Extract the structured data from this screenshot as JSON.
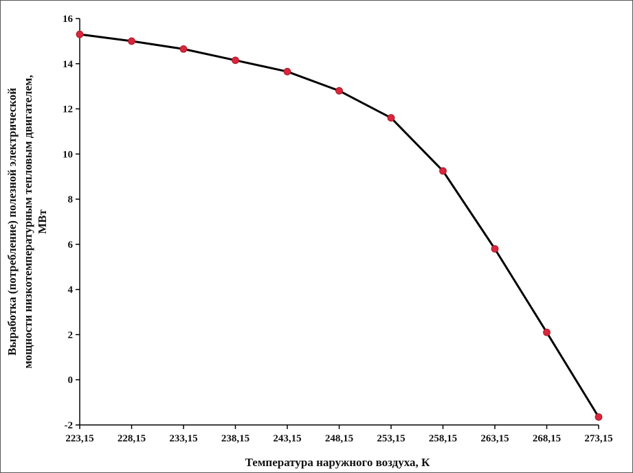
{
  "chart_data": {
    "type": "line",
    "title": "",
    "xlabel": "Температура наружного воздуха, К",
    "ylabel_lines": [
      "Выработка (потребление) полезной электрической",
      "мощности низкотемпературным тепловым двигателем,",
      "МВт"
    ],
    "x_categories": [
      "223,15",
      "228,15",
      "233,15",
      "238,15",
      "243,15",
      "248,15",
      "253,15",
      "258,15",
      "263,15",
      "268,15",
      "273,15"
    ],
    "x": [
      223.15,
      228.15,
      233.15,
      238.15,
      243.15,
      248.15,
      253.15,
      258.15,
      263.15,
      268.15,
      273.15
    ],
    "series": [
      {
        "values": [
          15.3,
          15.0,
          14.65,
          14.15,
          13.65,
          12.8,
          11.6,
          9.25,
          5.8,
          2.1,
          -1.65
        ]
      }
    ],
    "ylim": [
      -2,
      16
    ],
    "yticks": [
      -2,
      0,
      2,
      4,
      6,
      8,
      10,
      12,
      14,
      16
    ],
    "grid": false,
    "legend": "none",
    "line_color": "#000000",
    "marker_color": "#d7263d"
  }
}
